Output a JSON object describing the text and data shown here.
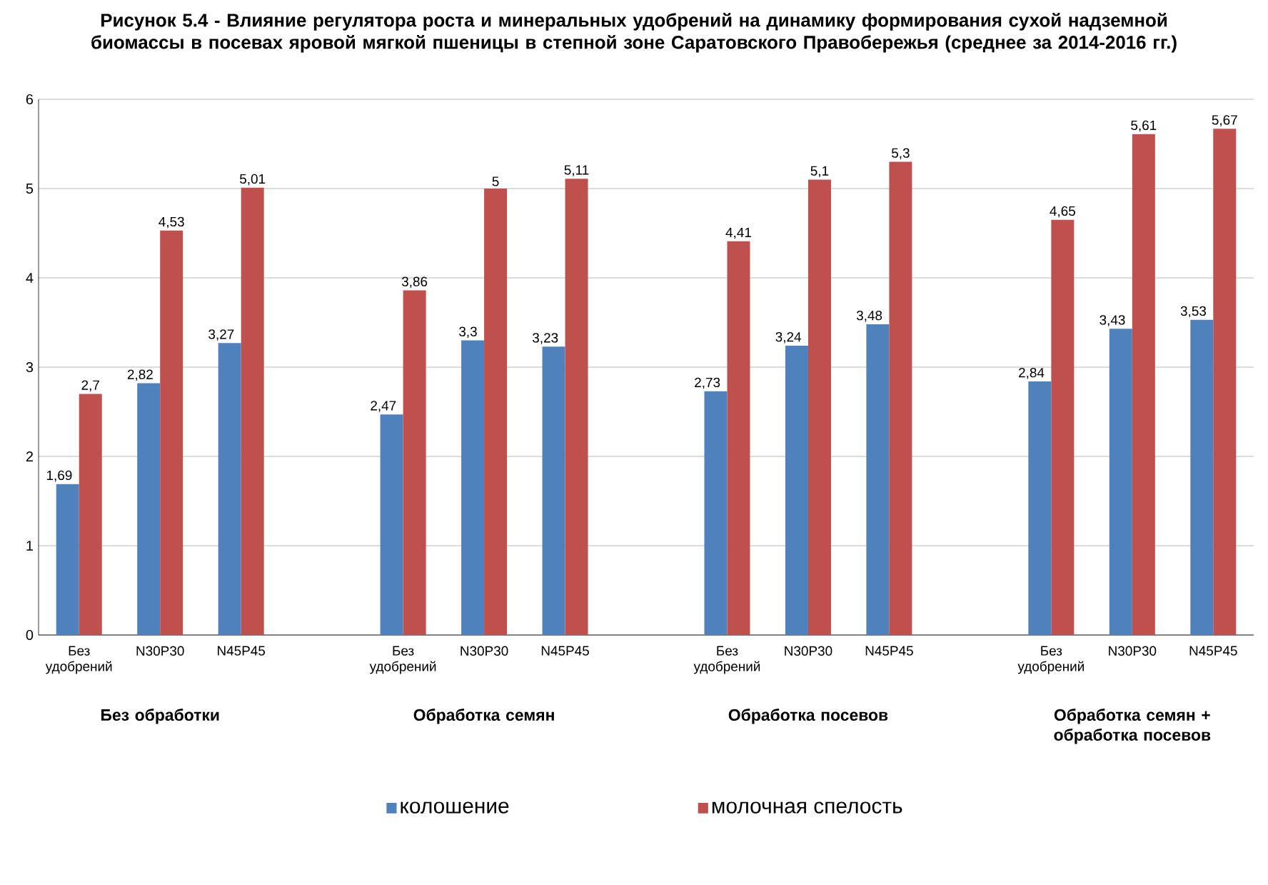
{
  "chart_data": {
    "type": "bar",
    "title": "Рисунок 5.4 - Влияние регулятора роста и минеральных удобрений на динамику формирования сухой надземной биомассы в посевах яровой мягкой пшеницы в степной зоне Саратовского Правобережья (среднее за 2014-2016 гг.)",
    "categories": [
      "Без удобрений",
      "N30P30",
      "N45P45",
      null,
      "Без удобрений",
      "N30P30",
      "N45P45",
      null,
      "Без удобрений",
      "N30P30",
      "N45P45",
      null,
      "Без удобрений",
      "N30P30",
      "N45P45"
    ],
    "series": [
      {
        "name": "колошение",
        "color": "#4f81bd",
        "values": [
          1.69,
          2.82,
          3.27,
          null,
          2.47,
          3.3,
          3.23,
          null,
          2.73,
          3.24,
          3.48,
          null,
          2.84,
          3.43,
          3.53
        ],
        "value_labels": [
          "1,69",
          "2,82",
          "3,27",
          null,
          "2,47",
          "3,3",
          "3,23",
          null,
          "2,73",
          "3,24",
          "3,48",
          null,
          "2,84",
          "3,43",
          "3,53"
        ]
      },
      {
        "name": "молочная спелость",
        "color": "#c0504d",
        "values": [
          2.7,
          4.53,
          5.01,
          null,
          3.86,
          5,
          5.11,
          null,
          4.41,
          5.1,
          5.3,
          null,
          4.65,
          5.61,
          5.67
        ],
        "value_labels": [
          "2,7",
          "4,53",
          "5,01",
          null,
          "3,86",
          "5",
          "5,11",
          null,
          "4,41",
          "5,1",
          "5,3",
          null,
          "4,65",
          "5,61",
          "5,67"
        ]
      }
    ],
    "ylim": [
      0,
      6
    ],
    "yticks": [
      0,
      1,
      2,
      3,
      4,
      5,
      6
    ],
    "grid": "y",
    "legend": "bottom",
    "annotations": [
      "Без обработки",
      "Обработка семян",
      "Обработка посевов",
      "Обработка семян + обработка посевов"
    ]
  }
}
